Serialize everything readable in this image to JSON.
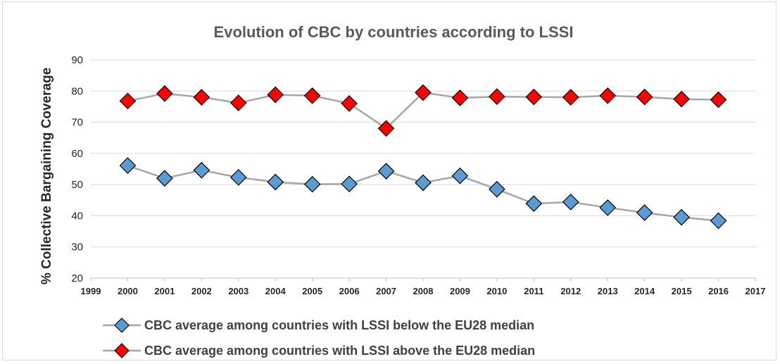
{
  "chart_data": {
    "type": "line",
    "title": "Evolution of CBC by countries according to LSSI",
    "ylabel": "% Collective Bargaining Coverage",
    "xlabel": "",
    "xlim": [
      1999,
      2017
    ],
    "ylim": [
      20,
      90
    ],
    "x_ticks": [
      "1999",
      "2000",
      "2001",
      "2002",
      "2003",
      "2004",
      "2005",
      "2006",
      "2007",
      "2008",
      "2009",
      "2010",
      "2011",
      "2012",
      "2013",
      "2014",
      "2015",
      "2016",
      "2017"
    ],
    "y_ticks": [
      "20",
      "30",
      "40",
      "50",
      "60",
      "70",
      "80",
      "90"
    ],
    "grid": "horizontal",
    "legend_position": "bottom",
    "x": [
      2000,
      2001,
      2002,
      2003,
      2004,
      2005,
      2006,
      2007,
      2008,
      2009,
      2010,
      2011,
      2012,
      2013,
      2014,
      2015,
      2016
    ],
    "series": [
      {
        "name": "CBC average among countries with LSSI below the EU28 median",
        "color": "#5b9bd5",
        "line_color": "#a6a6a6",
        "marker": "diamond",
        "values": [
          56.1,
          52.0,
          54.6,
          52.3,
          50.8,
          50.1,
          50.2,
          54.3,
          50.6,
          52.8,
          48.5,
          43.9,
          44.4,
          42.6,
          41.0,
          39.5,
          38.4
        ]
      },
      {
        "name": "CBC average among countries with LSSI above the EU28 median",
        "color": "#ff0000",
        "line_color": "#a6a6a6",
        "marker": "diamond",
        "values": [
          76.8,
          79.2,
          78.0,
          76.2,
          78.8,
          78.5,
          76.0,
          68.0,
          79.5,
          77.8,
          78.2,
          78.1,
          78.0,
          78.5,
          78.1,
          77.4,
          77.2
        ]
      }
    ]
  }
}
